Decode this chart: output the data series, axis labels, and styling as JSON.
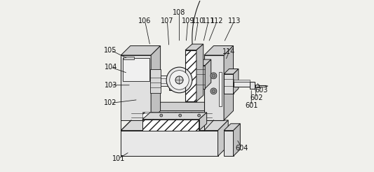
{
  "background_color": "#f0f0ec",
  "line_color": "#1a1a1a",
  "figsize": [
    5.33,
    2.46
  ],
  "dpi": 100,
  "label_fontsize": 7,
  "annotations": [
    {
      "label": "101",
      "ptr": [
        0.165,
        0.115
      ],
      "txt": [
        0.1,
        0.075
      ]
    },
    {
      "label": "102",
      "ptr": [
        0.215,
        0.42
      ],
      "txt": [
        0.055,
        0.4
      ]
    },
    {
      "label": "103",
      "ptr": [
        0.175,
        0.505
      ],
      "txt": [
        0.055,
        0.505
      ]
    },
    {
      "label": "104",
      "ptr": [
        0.155,
        0.575
      ],
      "txt": [
        0.055,
        0.61
      ]
    },
    {
      "label": "105",
      "ptr": [
        0.155,
        0.66
      ],
      "txt": [
        0.055,
        0.71
      ]
    },
    {
      "label": "106",
      "ptr": [
        0.285,
        0.735
      ],
      "txt": [
        0.255,
        0.88
      ]
    },
    {
      "label": "107",
      "ptr": [
        0.395,
        0.73
      ],
      "txt": [
        0.385,
        0.88
      ]
    },
    {
      "label": "108",
      "ptr": [
        0.455,
        0.755
      ],
      "txt": [
        0.455,
        0.93
      ]
    },
    {
      "label": "109",
      "ptr": [
        0.495,
        0.755
      ],
      "txt": [
        0.505,
        0.88
      ]
    },
    {
      "label": "110",
      "ptr": [
        0.545,
        0.755
      ],
      "txt": [
        0.565,
        0.88
      ]
    },
    {
      "label": "111",
      "ptr": [
        0.595,
        0.755
      ],
      "txt": [
        0.625,
        0.88
      ]
    },
    {
      "label": "112",
      "ptr": [
        0.625,
        0.755
      ],
      "txt": [
        0.675,
        0.88
      ]
    },
    {
      "label": "113",
      "ptr": [
        0.715,
        0.755
      ],
      "txt": [
        0.775,
        0.88
      ]
    },
    {
      "label": "114",
      "ptr": [
        0.725,
        0.65
      ],
      "txt": [
        0.745,
        0.7
      ]
    },
    {
      "label": "601",
      "ptr": [
        0.875,
        0.485
      ],
      "txt": [
        0.875,
        0.385
      ]
    },
    {
      "label": "602",
      "ptr": [
        0.895,
        0.505
      ],
      "txt": [
        0.905,
        0.43
      ]
    },
    {
      "label": "603",
      "ptr": [
        0.905,
        0.525
      ],
      "txt": [
        0.935,
        0.475
      ]
    },
    {
      "label": "604",
      "ptr": [
        0.79,
        0.19
      ],
      "txt": [
        0.82,
        0.135
      ]
    }
  ]
}
